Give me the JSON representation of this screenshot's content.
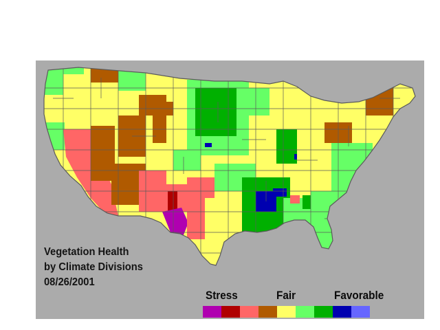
{
  "title_lines": [
    "Vegetation Health",
    "by Climate Divisions",
    "08/26/2001"
  ],
  "legend": {
    "labels": {
      "stress": "Stress",
      "fair": "Fair",
      "favorable": "Favorable"
    },
    "colors": [
      "#b000b0",
      "#b00000",
      "#ff6666",
      "#b05a00",
      "#ffff66",
      "#66ff66",
      "#00b000",
      "#0000b0",
      "#6666ff"
    ]
  },
  "colors": {
    "background": "#ababab",
    "division_lines": "#5a5a5a"
  }
}
